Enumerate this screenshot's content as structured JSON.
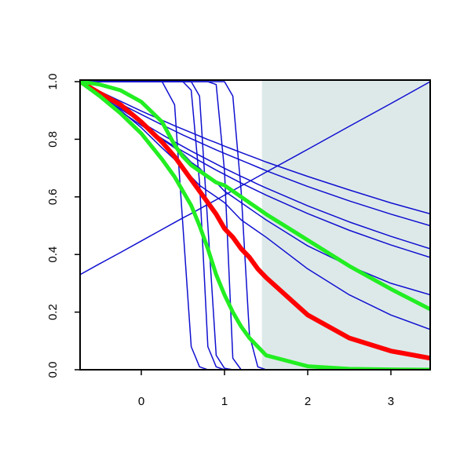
{
  "chart_data": {
    "type": "line",
    "x": [
      -0.736,
      -0.5,
      -0.25,
      0,
      0.25,
      0.4,
      0.5,
      0.6,
      0.7,
      0.8,
      0.9,
      1,
      1.1,
      1.2,
      1.3,
      1.4,
      1.5,
      2,
      2.5,
      3,
      3.472
    ],
    "xlim": [
      -0.736,
      3.472
    ],
    "ylim": [
      0,
      1
    ],
    "xticks": [
      0,
      1,
      2,
      3
    ],
    "yticks": [
      {
        "value": 0,
        "label": "0.0"
      },
      0.2,
      0.4,
      0.6,
      0.8,
      {
        "value": 1,
        "label": "1.0"
      }
    ],
    "shaded_xrange": [
      1.45,
      3.472
    ],
    "shade_color": "#dde9e9",
    "series": [
      {
        "color": "#1010d0",
        "width": 1.5,
        "values": [
          0.33,
          0.368,
          0.407,
          0.447,
          0.487,
          0.511,
          0.527,
          0.542,
          0.558,
          0.574,
          0.59,
          0.606,
          0.622,
          0.638,
          0.654,
          0.67,
          0.686,
          0.765,
          0.845,
          0.924,
          1.0
        ]
      },
      {
        "color": "#1010d0",
        "width": 1.5,
        "values": [
          1,
          1,
          1,
          1,
          1,
          0.92,
          0.5,
          0.08,
          0.01,
          0,
          0,
          0,
          0,
          0,
          0,
          0,
          0,
          0,
          0,
          0,
          0
        ]
      },
      {
        "color": "#1010d0",
        "width": 1.5,
        "values": [
          1,
          1,
          1,
          1,
          1,
          1,
          1,
          0.97,
          0.65,
          0.08,
          0.01,
          0,
          0,
          0,
          0,
          0,
          0,
          0,
          0,
          0,
          0
        ]
      },
      {
        "color": "#1010d0",
        "width": 1.5,
        "values": [
          1,
          1,
          1,
          1,
          1,
          1,
          1,
          1,
          0.95,
          0.5,
          0.05,
          0.005,
          0,
          0,
          0,
          0,
          0,
          0,
          0,
          0,
          0
        ]
      },
      {
        "color": "#1010d0",
        "width": 1.5,
        "values": [
          1,
          1,
          1,
          1,
          1,
          1,
          1,
          1,
          1,
          1,
          0.99,
          0.69,
          0.04,
          0,
          0,
          0,
          0,
          0,
          0,
          0,
          0
        ]
      },
      {
        "color": "#1010d0",
        "width": 1.5,
        "values": [
          1,
          1,
          1,
          1,
          1,
          1,
          1,
          1,
          1,
          1,
          1,
          1,
          0.95,
          0.62,
          0.12,
          0.01,
          0,
          0,
          0,
          0,
          0
        ]
      },
      {
        "color": "#1010d0",
        "width": 1.5,
        "values": [
          1,
          0.966,
          0.932,
          0.898,
          0.866,
          0.847,
          0.835,
          0.823,
          0.811,
          0.799,
          0.788,
          0.776,
          0.765,
          0.754,
          0.743,
          0.732,
          0.721,
          0.671,
          0.624,
          0.579,
          0.541
        ]
      },
      {
        "color": "#1010d0",
        "width": 1.5,
        "values": [
          1,
          0.962,
          0.923,
          0.886,
          0.85,
          0.829,
          0.815,
          0.802,
          0.789,
          0.776,
          0.763,
          0.751,
          0.739,
          0.727,
          0.715,
          0.703,
          0.691,
          0.636,
          0.586,
          0.54,
          0.5
        ]
      },
      {
        "color": "#1010d0",
        "width": 1.5,
        "values": [
          1,
          0.953,
          0.905,
          0.859,
          0.816,
          0.791,
          0.775,
          0.759,
          0.744,
          0.729,
          0.714,
          0.699,
          0.685,
          0.671,
          0.658,
          0.644,
          0.631,
          0.569,
          0.513,
          0.463,
          0.42
        ]
      },
      {
        "color": "#1010d0",
        "width": 1.5,
        "values": [
          1,
          0.948,
          0.897,
          0.848,
          0.802,
          0.775,
          0.758,
          0.742,
          0.725,
          0.709,
          0.693,
          0.678,
          0.663,
          0.648,
          0.634,
          0.62,
          0.606,
          0.542,
          0.484,
          0.433,
          0.39
        ]
      },
      {
        "color": "#1010d0",
        "width": 1.5,
        "values": [
          1,
          0.96,
          0.91,
          0.86,
          0.8,
          0.77,
          0.75,
          0.72,
          0.7,
          0.67,
          0.65,
          0.62,
          0.6,
          0.58,
          0.56,
          0.54,
          0.52,
          0.43,
          0.36,
          0.3,
          0.26
        ]
      },
      {
        "color": "#1010d0",
        "width": 1.5,
        "values": [
          1,
          0.96,
          0.9,
          0.84,
          0.77,
          0.73,
          0.7,
          0.67,
          0.64,
          0.62,
          0.6,
          0.58,
          0.55,
          0.52,
          0.5,
          0.48,
          0.46,
          0.35,
          0.26,
          0.19,
          0.14
        ]
      },
      {
        "color": "#ff0000",
        "width": 6,
        "values": [
          1,
          0.96,
          0.92,
          0.86,
          0.79,
          0.74,
          0.7,
          0.66,
          0.62,
          0.58,
          0.54,
          0.49,
          0.46,
          0.42,
          0.39,
          0.35,
          0.32,
          0.19,
          0.11,
          0.065,
          0.04
        ]
      },
      {
        "color": "#22ee22",
        "width": 5,
        "values": [
          1,
          0.95,
          0.89,
          0.82,
          0.73,
          0.67,
          0.62,
          0.57,
          0.5,
          0.42,
          0.33,
          0.26,
          0.2,
          0.15,
          0.11,
          0.08,
          0.05,
          0.012,
          0.003,
          0.001,
          0
        ]
      },
      {
        "color": "#22ee22",
        "width": 5,
        "values": [
          1,
          0.99,
          0.97,
          0.93,
          0.86,
          0.78,
          0.74,
          0.71,
          0.69,
          0.67,
          0.65,
          0.64,
          0.62,
          0.6,
          0.58,
          0.56,
          0.54,
          0.45,
          0.36,
          0.28,
          0.21
        ]
      }
    ]
  }
}
